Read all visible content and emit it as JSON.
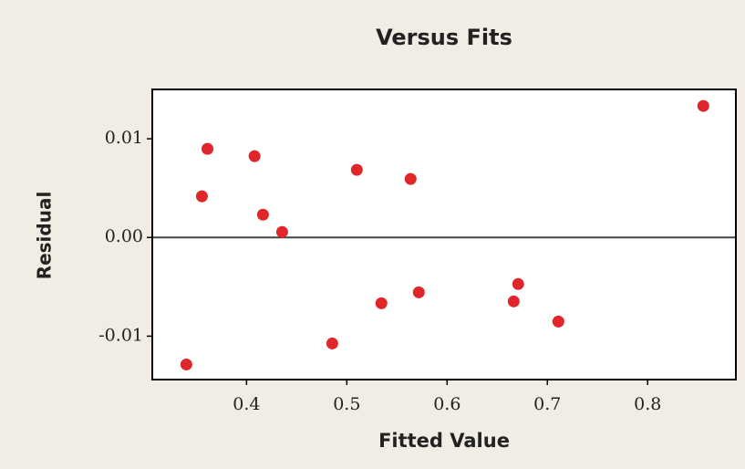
{
  "chart_data": {
    "type": "scatter",
    "title": "Versus Fits",
    "x_label": "Fitted Value",
    "y_label": "Residual",
    "x": [
      0.34,
      0.3555,
      0.361,
      0.408,
      0.4164,
      0.4355,
      0.4855,
      0.51,
      0.5345,
      0.5636,
      0.5718,
      0.6664,
      0.6709,
      0.711,
      0.8555
    ],
    "values": [
      -0.01287,
      0.00417,
      0.00898,
      0.00824,
      0.00231,
      0.00056,
      -0.01074,
      0.00685,
      -0.00667,
      0.00593,
      -0.00556,
      -0.00648,
      -0.00472,
      -0.00852,
      0.01333
    ],
    "color": "#e0262a",
    "xlim": [
      0.306,
      0.888
    ],
    "xticks": [
      0.4,
      0.5,
      0.6,
      0.7,
      0.8
    ],
    "ylim": [
      -0.0144,
      0.015
    ],
    "yticks": [
      -0.01,
      {
        "value": 0,
        "label": "0.00"
      },
      0.01
    ],
    "reference_line": 0
  }
}
